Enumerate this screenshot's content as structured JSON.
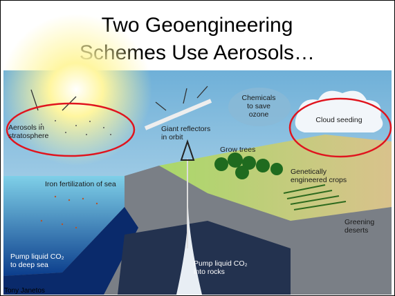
{
  "slide": {
    "title_lines": [
      "Two Geoengineering",
      "Schemes Use Aerosols…"
    ],
    "labels": {
      "aerosols": [
        "Aerosols in",
        "stratosphere"
      ],
      "reflectors": [
        "Giant reflectors",
        "in orbit"
      ],
      "chemicals": [
        "Chemicals",
        "to save",
        "ozone"
      ],
      "cloud": [
        "Cloud seeding"
      ],
      "trees": [
        "Grow trees"
      ],
      "crops": [
        "Genetically",
        "engineered crops"
      ],
      "iron": [
        "Iron fertilization of sea"
      ],
      "deserts": [
        "Greening",
        "deserts"
      ],
      "deep_sea": [
        "Pump liquid CO₂",
        "to deep sea"
      ],
      "rocks": [
        "Pump liquid CO₂",
        "into rocks"
      ]
    },
    "credit": "Tony Janetos"
  }
}
